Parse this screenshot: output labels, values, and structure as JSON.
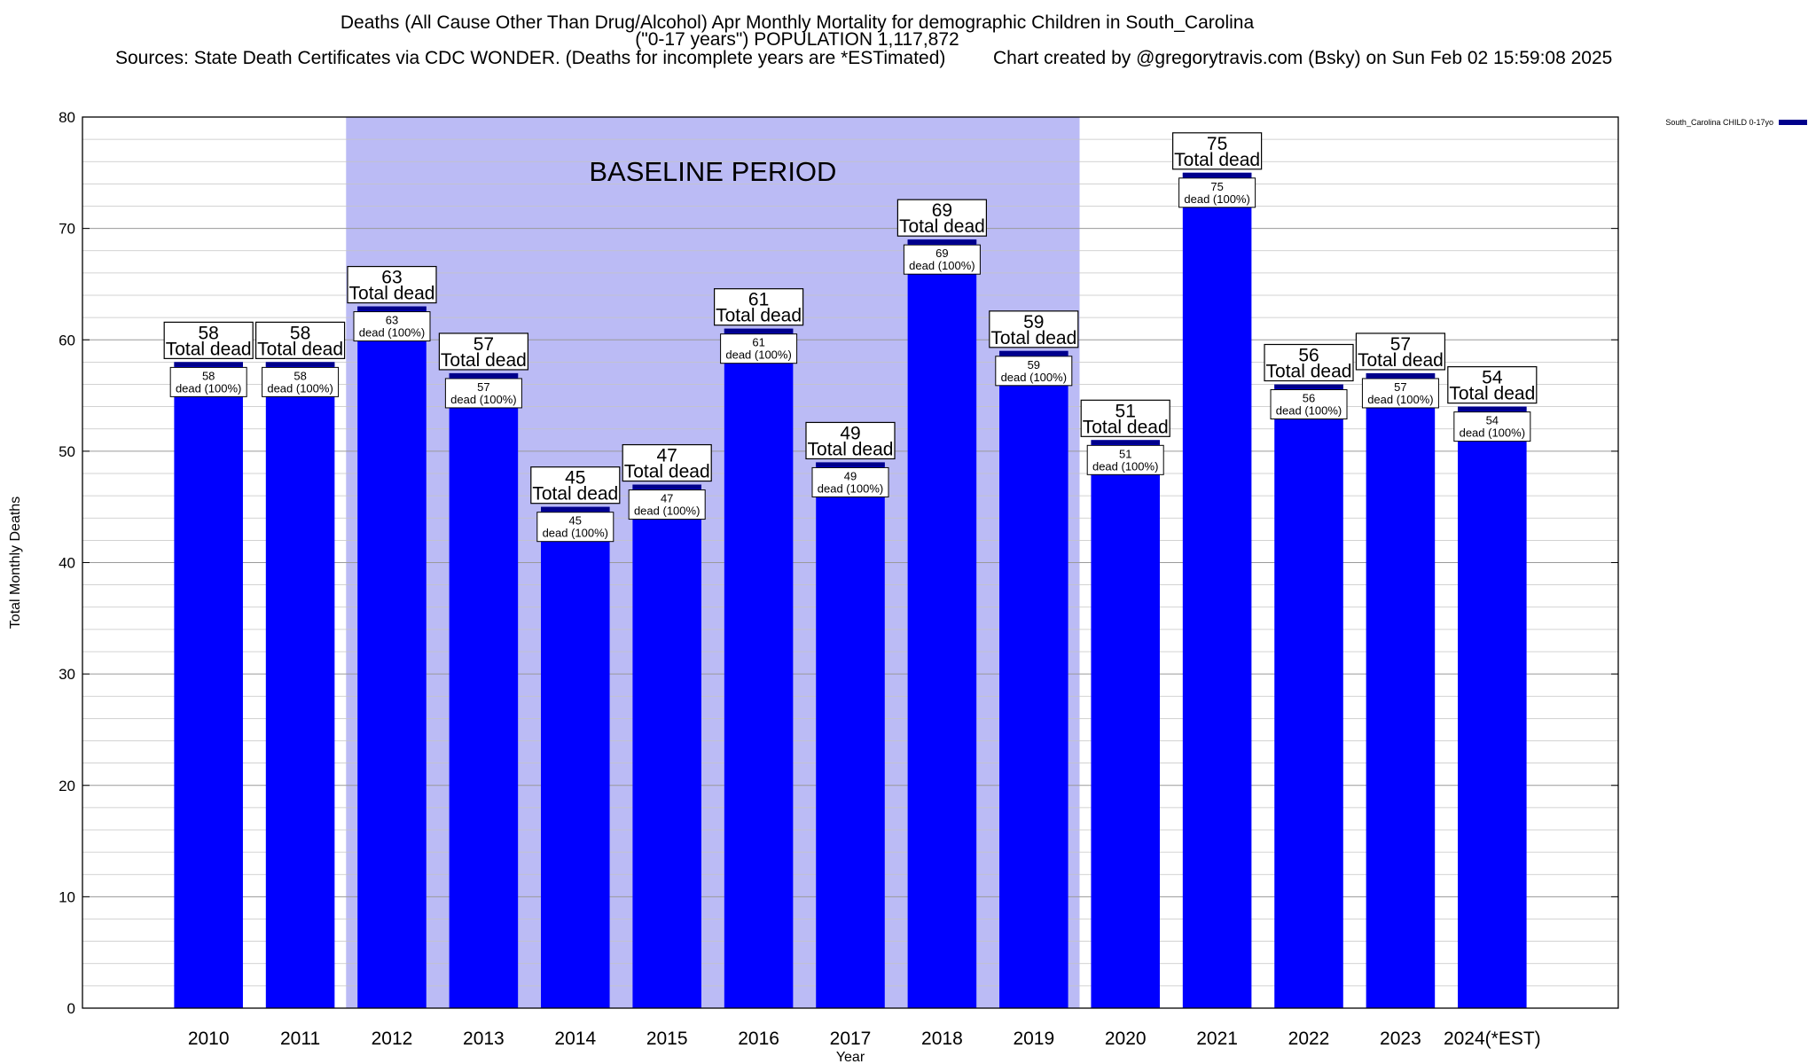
{
  "title_line1": "Deaths (All Cause Other Than Drug/Alcohol) Apr Monthly Mortality for demographic Children in South_Carolina",
  "title_line2": "(\"0-17 years\") POPULATION 1,117,872",
  "source_text": "Sources: State Death Certificates via CDC WONDER. (Deaths for incomplete years are *ESTimated)",
  "credit_text": "Chart created by @gregorytravis.com (Bsky) on Sun Feb 02 15:59:08 2025",
  "colors": {
    "bar": "#0000ff",
    "bar_top": "#00008b",
    "baseline_shade": "#bbbbf5"
  },
  "chart_data": {
    "type": "bar",
    "categories": [
      "2010",
      "2011",
      "2012",
      "2013",
      "2014",
      "2015",
      "2016",
      "2017",
      "2018",
      "2019",
      "2020",
      "2021",
      "2022",
      "2023",
      "2024(*EST)"
    ],
    "series": [
      {
        "name": "South_Carolina CHILD 0-17yo",
        "values": [
          58,
          58,
          63,
          57,
          45,
          47,
          61,
          49,
          69,
          59,
          51,
          75,
          56,
          57,
          54
        ]
      }
    ],
    "xlabel": "Year",
    "ylabel": "Total Monthly Deaths",
    "ylim": [
      0,
      80
    ],
    "yticks": [
      0,
      10,
      20,
      30,
      40,
      50,
      60,
      70,
      80
    ],
    "grid": true,
    "legend_position": "top-right",
    "annotation_outer": "Total dead",
    "annotation_inner": "dead (100%)",
    "shaded_region": {
      "label": "BASELINE PERIOD",
      "from": "2012",
      "to": "2019"
    }
  }
}
